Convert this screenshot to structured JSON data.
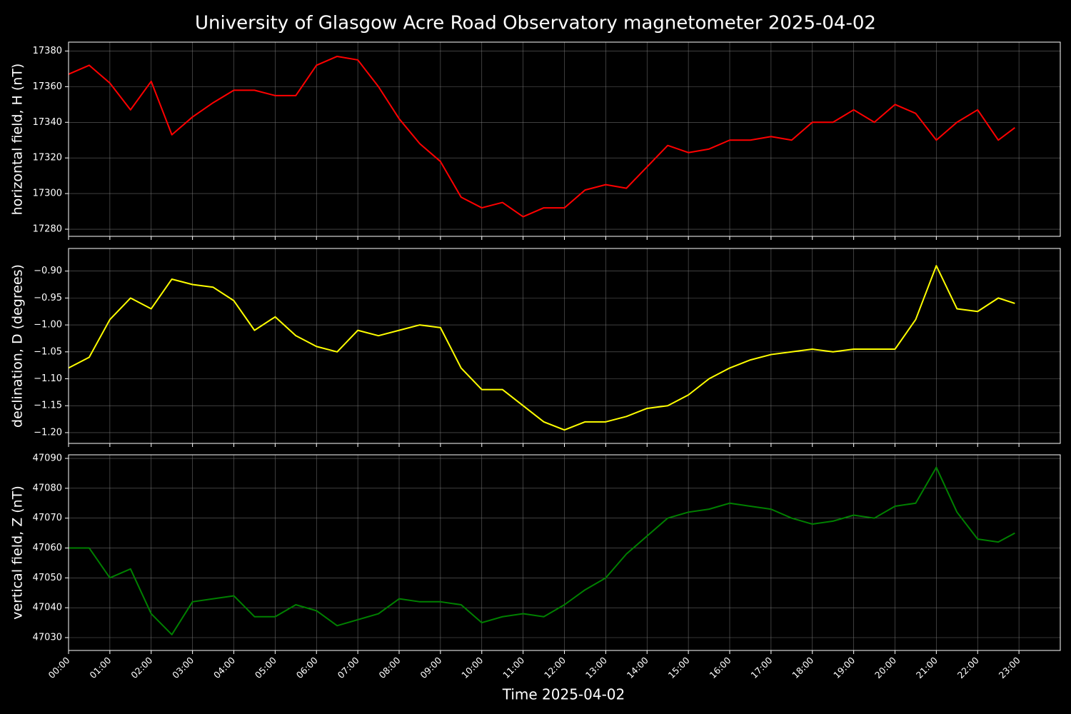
{
  "title": "University of Glasgow Acre Road Observatory magnetometer 2025-04-02",
  "chart_data": [
    {
      "type": "line",
      "ylabel": "horizontal field, H (nT)",
      "color": "#ff0000",
      "grid": true,
      "x": [
        0,
        0.5,
        1,
        1.5,
        2,
        2.5,
        3,
        3.5,
        4,
        4.5,
        5,
        5.5,
        6,
        6.5,
        7,
        7.5,
        8,
        8.5,
        9,
        9.5,
        10,
        10.5,
        11,
        11.5,
        12,
        12.5,
        13,
        13.5,
        14,
        14.5,
        15,
        15.5,
        16,
        16.5,
        17,
        17.5,
        18,
        18.5,
        19,
        19.5,
        20,
        20.5,
        21,
        21.5,
        22,
        22.5,
        22.9
      ],
      "values": [
        17367,
        17372,
        17362,
        17347,
        17363,
        17333,
        17343,
        17351,
        17358,
        17358,
        17355,
        17355,
        17372,
        17377,
        17375,
        17360,
        17342,
        17328,
        17318,
        17298,
        17292,
        17295,
        17287,
        17292,
        17292,
        17302,
        17305,
        17303,
        17315,
        17327,
        17323,
        17325,
        17330,
        17330,
        17332,
        17330,
        17340,
        17340,
        17347,
        17340,
        17350,
        17345,
        17330,
        17340,
        17347,
        17330,
        17337
      ],
      "xlim": [
        0,
        24
      ],
      "xticks": [
        0,
        1,
        2,
        3,
        4,
        5,
        6,
        7,
        8,
        9,
        10,
        11,
        12,
        13,
        14,
        15,
        16,
        17,
        18,
        19,
        20,
        21,
        22,
        23
      ],
      "ylim": [
        17276,
        17385
      ],
      "yticks": [
        17280,
        17300,
        17320,
        17340,
        17360,
        17380
      ]
    },
    {
      "type": "line",
      "ylabel": "declination, D (degrees)",
      "color": "#ffff00",
      "grid": true,
      "x": [
        0,
        0.5,
        1,
        1.5,
        2,
        2.5,
        3,
        3.5,
        4,
        4.5,
        5,
        5.5,
        6,
        6.5,
        7,
        7.5,
        8,
        8.5,
        9,
        9.5,
        10,
        10.5,
        11,
        11.5,
        12,
        12.5,
        13,
        13.5,
        14,
        14.5,
        15,
        15.5,
        16,
        16.5,
        17,
        17.5,
        18,
        18.5,
        19,
        19.5,
        20,
        20.5,
        21,
        21.5,
        22,
        22.5,
        22.9
      ],
      "values": [
        -1.08,
        -1.06,
        -0.99,
        -0.95,
        -0.97,
        -0.915,
        -0.925,
        -0.93,
        -0.955,
        -1.01,
        -0.985,
        -1.02,
        -1.04,
        -1.05,
        -1.01,
        -1.02,
        -1.01,
        -1.0,
        -1.005,
        -1.08,
        -1.12,
        -1.12,
        -1.15,
        -1.18,
        -1.195,
        -1.18,
        -1.18,
        -1.17,
        -1.155,
        -1.15,
        -1.13,
        -1.1,
        -1.08,
        -1.065,
        -1.055,
        -1.05,
        -1.045,
        -1.05,
        -1.045,
        -1.045,
        -1.045,
        -0.99,
        -0.89,
        -0.97,
        -0.975,
        -0.95,
        -0.96
      ],
      "xlim": [
        0,
        24
      ],
      "xticks": [
        0,
        1,
        2,
        3,
        4,
        5,
        6,
        7,
        8,
        9,
        10,
        11,
        12,
        13,
        14,
        15,
        16,
        17,
        18,
        19,
        20,
        21,
        22,
        23
      ],
      "ylim": [
        -1.22,
        -0.858
      ],
      "yticks": [
        {
          "value": -1.2,
          "label": "−1.20"
        },
        {
          "value": -1.15,
          "label": "−1.15"
        },
        {
          "value": -1.1,
          "label": "−1.10"
        },
        {
          "value": -1.05,
          "label": "−1.05"
        },
        {
          "value": -1.0,
          "label": "−1.00"
        },
        {
          "value": -0.95,
          "label": "−0.95"
        },
        {
          "value": -0.9,
          "label": "−0.90"
        }
      ]
    },
    {
      "type": "line",
      "ylabel": "vertical field, Z (nT)",
      "xlabel": "Time 2025-04-02",
      "color": "#008000",
      "grid": true,
      "x": [
        0,
        0.5,
        1,
        1.5,
        2,
        2.5,
        3,
        3.5,
        4,
        4.5,
        5,
        5.5,
        6,
        6.5,
        7,
        7.5,
        8,
        8.5,
        9,
        9.5,
        10,
        10.5,
        11,
        11.5,
        12,
        12.5,
        13,
        13.5,
        14,
        14.5,
        15,
        15.5,
        16,
        16.5,
        17,
        17.5,
        18,
        18.5,
        19,
        19.5,
        20,
        20.5,
        21,
        21.5,
        22,
        22.5,
        22.9
      ],
      "values": [
        47060,
        47060,
        47050,
        47053,
        47038,
        47031,
        47042,
        47043,
        47044,
        47037,
        47037,
        47041,
        47039,
        47034,
        47036,
        47038,
        47043,
        47042,
        47042,
        47041,
        47035,
        47037,
        47038,
        47037,
        47041,
        47046,
        47050,
        47058,
        47064,
        47070,
        47072,
        47073,
        47075,
        47074,
        47073,
        47070,
        47068,
        47069,
        47071,
        47070,
        47074,
        47075,
        47087,
        47072,
        47063,
        47062,
        47065
      ],
      "xlim": [
        0,
        24
      ],
      "xticks": [
        {
          "value": 0,
          "label": "00:00"
        },
        {
          "value": 1,
          "label": "01:00"
        },
        {
          "value": 2,
          "label": "02:00"
        },
        {
          "value": 3,
          "label": "03:00"
        },
        {
          "value": 4,
          "label": "04:00"
        },
        {
          "value": 5,
          "label": "05:00"
        },
        {
          "value": 6,
          "label": "06:00"
        },
        {
          "value": 7,
          "label": "07:00"
        },
        {
          "value": 8,
          "label": "08:00"
        },
        {
          "value": 9,
          "label": "09:00"
        },
        {
          "value": 10,
          "label": "10:00"
        },
        {
          "value": 11,
          "label": "11:00"
        },
        {
          "value": 12,
          "label": "12:00"
        },
        {
          "value": 13,
          "label": "13:00"
        },
        {
          "value": 14,
          "label": "14:00"
        },
        {
          "value": 15,
          "label": "15:00"
        },
        {
          "value": 16,
          "label": "16:00"
        },
        {
          "value": 17,
          "label": "17:00"
        },
        {
          "value": 18,
          "label": "18:00"
        },
        {
          "value": 19,
          "label": "19:00"
        },
        {
          "value": 20,
          "label": "20:00"
        },
        {
          "value": 21,
          "label": "21:00"
        },
        {
          "value": 22,
          "label": "22:00"
        },
        {
          "value": 23,
          "label": "23:00"
        }
      ],
      "ylim": [
        47025.7,
        47091.2
      ],
      "yticks": [
        47030,
        47040,
        47050,
        47060,
        47070,
        47080,
        47090
      ]
    }
  ]
}
